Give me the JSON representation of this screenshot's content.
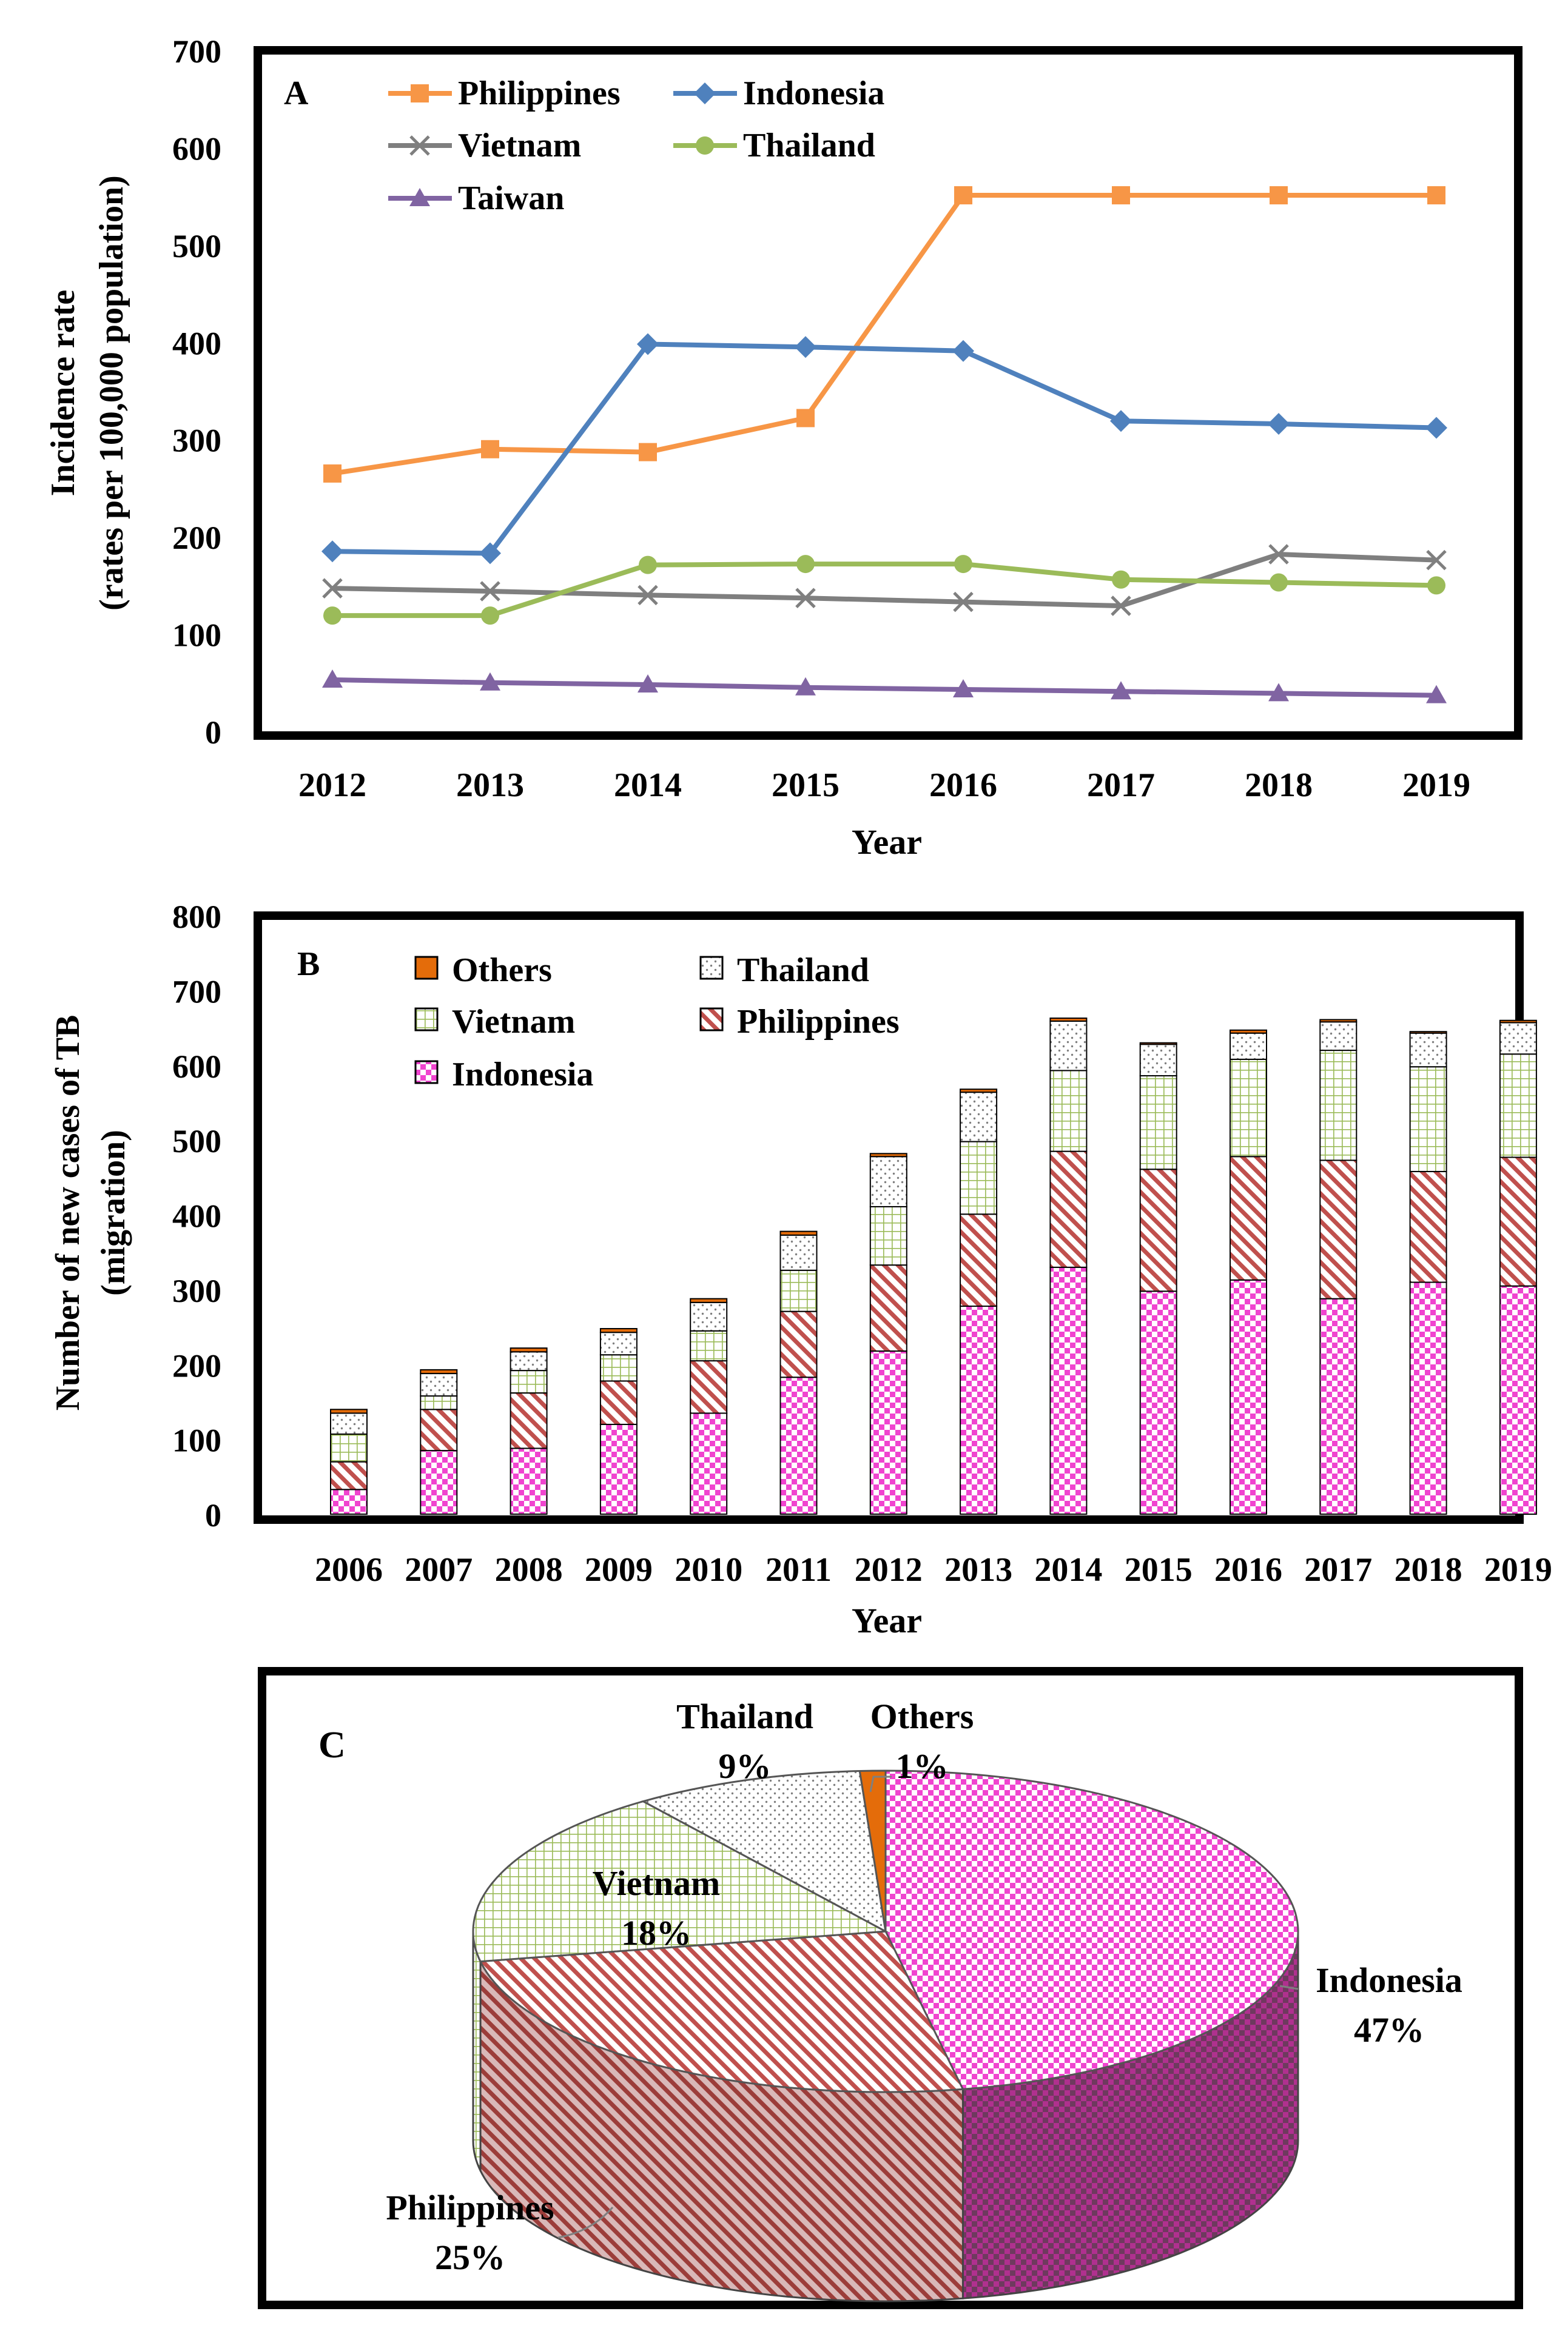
{
  "chart_data": [
    {
      "panel": "A",
      "type": "line",
      "title": "",
      "xlabel": "Year",
      "ylabel": [
        "Incidence rate",
        "(rates per 100,000 population)"
      ],
      "ylim": [
        0,
        700
      ],
      "yticks": [
        0,
        100,
        200,
        300,
        400,
        500,
        600,
        700
      ],
      "x": [
        "2012",
        "2013",
        "2014",
        "2015",
        "2016",
        "2017",
        "2018",
        "2019"
      ],
      "legend_location": "top-left",
      "series": [
        {
          "name": "Philippines",
          "color": "#f79646",
          "marker": "square",
          "values": [
            265,
            290,
            287,
            322,
            551,
            551,
            551,
            551
          ]
        },
        {
          "name": "Indonesia",
          "color": "#4f81bd",
          "marker": "diamond",
          "values": [
            185,
            183,
            398,
            395,
            391,
            319,
            316,
            312
          ]
        },
        {
          "name": "Vietnam",
          "color": "#7f7f7f",
          "marker": "x",
          "values": [
            147,
            144,
            140,
            137,
            133,
            129,
            182,
            176
          ]
        },
        {
          "name": "Thailand",
          "color": "#9bbb59",
          "marker": "circle",
          "values": [
            119,
            119,
            171,
            172,
            172,
            156,
            153,
            150
          ]
        },
        {
          "name": "Taiwan",
          "color": "#8064a2",
          "marker": "triangle",
          "values": [
            53,
            50,
            48,
            45,
            43,
            41,
            39,
            37
          ]
        }
      ]
    },
    {
      "panel": "B",
      "type": "bar",
      "stacked": true,
      "title": "",
      "xlabel": "Year",
      "ylabel": [
        "Number of new cases of TB",
        "(migration)"
      ],
      "ylim": [
        0,
        800
      ],
      "yticks": [
        0,
        100,
        200,
        300,
        400,
        500,
        600,
        700,
        800
      ],
      "categories": [
        "2006",
        "2007",
        "2008",
        "2009",
        "2010",
        "2011",
        "2012",
        "2013",
        "2014",
        "2015",
        "2016",
        "2017",
        "2018",
        "2019"
      ],
      "legend_location": "top-left",
      "series": [
        {
          "name": "Indonesia",
          "pattern": "checker-pink",
          "values": [
            33,
            85,
            88,
            120,
            135,
            183,
            218,
            278,
            330,
            298,
            313,
            288,
            310,
            305
          ]
        },
        {
          "name": "Philippines",
          "pattern": "hatch-red",
          "values": [
            37,
            55,
            74,
            58,
            70,
            88,
            115,
            123,
            155,
            163,
            165,
            185,
            148,
            172
          ]
        },
        {
          "name": "Vietnam",
          "pattern": "grid-green",
          "values": [
            37,
            18,
            30,
            35,
            40,
            55,
            78,
            97,
            108,
            125,
            130,
            147,
            140,
            138
          ]
        },
        {
          "name": "Thailand",
          "pattern": "dots",
          "values": [
            28,
            30,
            25,
            30,
            38,
            47,
            67,
            66,
            66,
            42,
            35,
            38,
            45,
            42
          ]
        },
        {
          "name": "Others",
          "color": "#e46c0a",
          "values": [
            5,
            5,
            5,
            5,
            5,
            5,
            4,
            4,
            4,
            2,
            4,
            3,
            2,
            3
          ]
        }
      ],
      "legend_order": [
        "Others",
        "Thailand",
        "Vietnam",
        "Philippines",
        "Indonesia"
      ]
    },
    {
      "panel": "C",
      "type": "pie",
      "style": "3d",
      "title": "",
      "slices": [
        {
          "name": "Indonesia",
          "value": 47,
          "label": "47%",
          "pattern": "checker-pink"
        },
        {
          "name": "Philippines",
          "value": 25,
          "label": "25%",
          "pattern": "hatch-red"
        },
        {
          "name": "Vietnam",
          "value": 18,
          "label": "18%",
          "pattern": "grid-green"
        },
        {
          "name": "Thailand",
          "value": 9,
          "label": "9%",
          "pattern": "dots"
        },
        {
          "name": "Others",
          "value": 1,
          "label": "1%",
          "color": "#e46c0a"
        }
      ]
    }
  ]
}
